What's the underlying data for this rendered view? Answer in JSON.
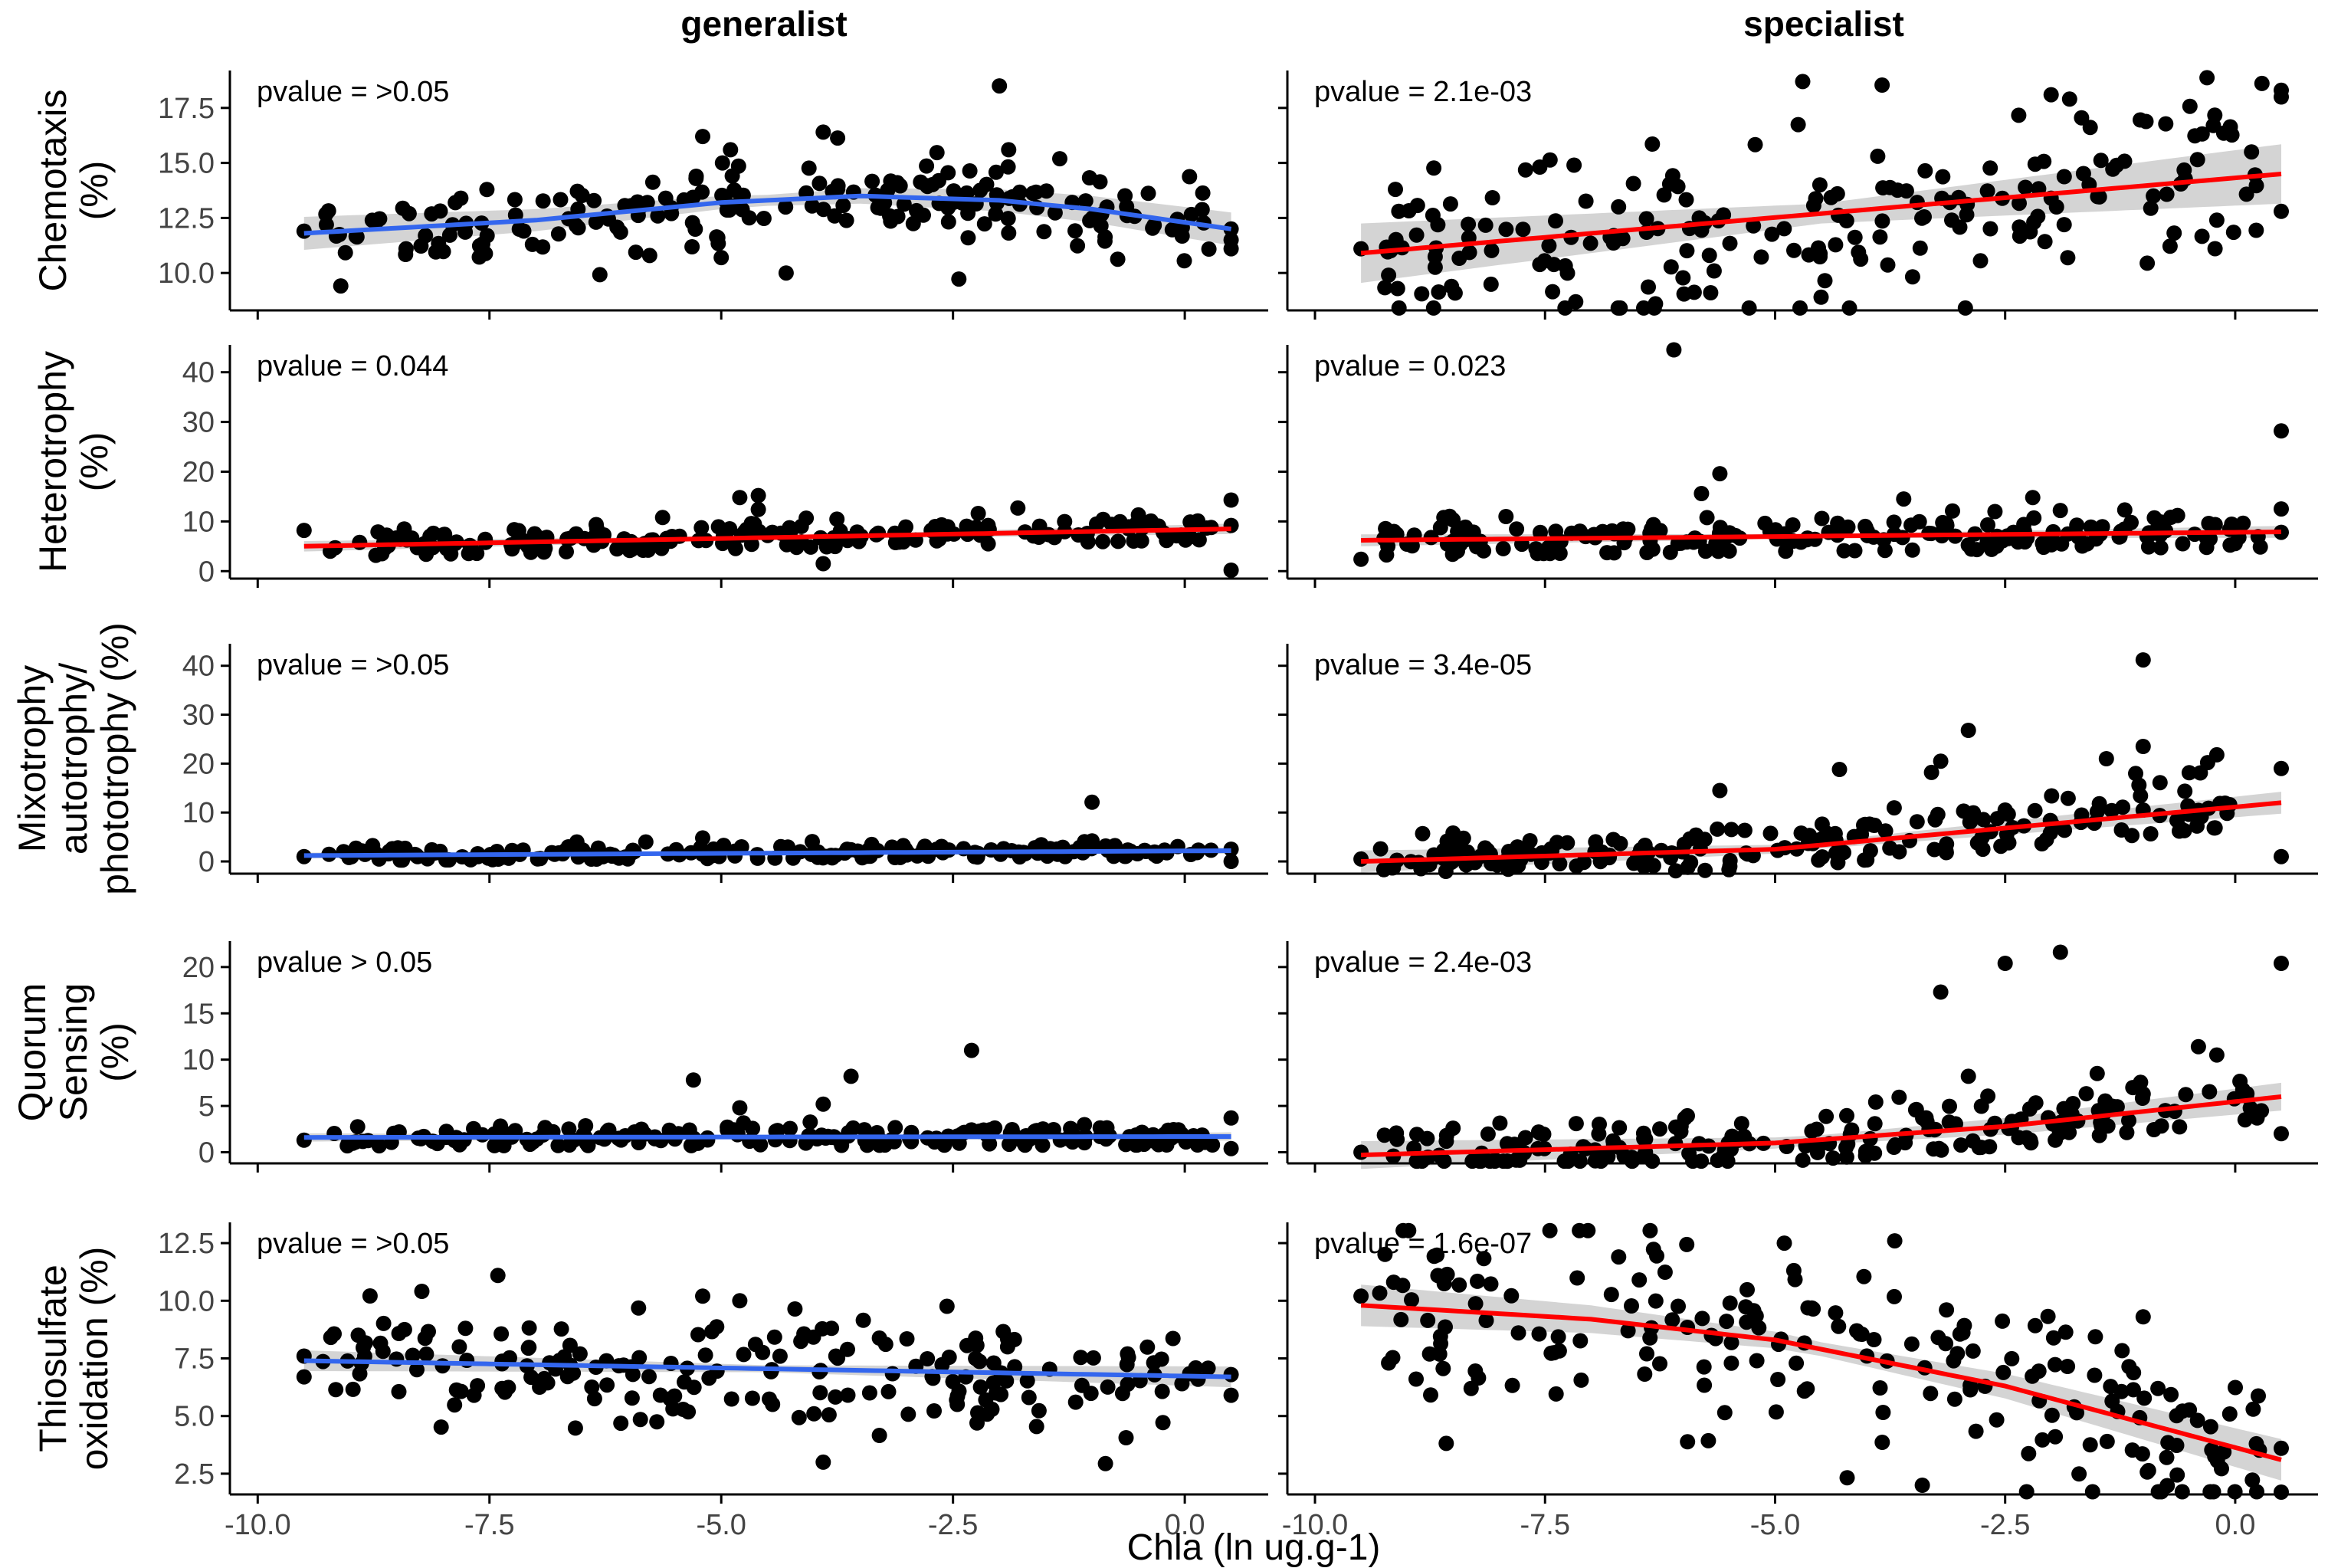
{
  "colors": {
    "generalist_line": "#3366ee",
    "sig_line": "#ff0000",
    "band": "#cccccc",
    "points": "#000000",
    "axis": "#000000",
    "tick_label": "#444444"
  },
  "chart_data": {
    "type": "scatter",
    "facet_columns": [
      "generalist",
      "specialist"
    ],
    "xlabel": "Chla (ln ug.g-1)",
    "xlim": [
      -10.3,
      0.9
    ],
    "xticks": [
      -10,
      -7.5,
      -5,
      -2.5,
      0
    ],
    "xtick_labels": [
      "-10.0",
      "-7.5",
      "-5.0",
      "-2.5",
      "0.0"
    ],
    "grid": false,
    "rows": [
      {
        "ylabel": [
          "Chemotaxis",
          "(%)"
        ],
        "ylim": [
          8.3,
          19.2
        ],
        "yticks": [
          10,
          12.5,
          15,
          17.5
        ],
        "ytick_labels": [
          "10.0",
          "12.5",
          "15.0",
          "17.5"
        ],
        "panels": [
          {
            "group": "generalist",
            "pvalue": "pvalue = >0.05",
            "line_color": "#3366ee",
            "fit": [
              [
                -9.5,
                11.8
              ],
              [
                -7,
                12.4
              ],
              [
                -5,
                13.2
              ],
              [
                -3.5,
                13.5
              ],
              [
                -2,
                13.3
              ],
              [
                -1,
                12.9
              ],
              [
                0.5,
                12.0
              ]
            ],
            "band": 0.5,
            "n": 200,
            "mean": 12.8,
            "sd": 0.9,
            "points": [
              [
                -2,
                18.5
              ],
              [
                -3.9,
                16.4
              ],
              [
                -5.2,
                16.2
              ],
              [
                -4.9,
                15.6
              ],
              [
                -5,
                10.7
              ],
              [
                -4.3,
                10
              ],
              [
                -1.9,
                15.6
              ],
              [
                -9.5,
                11.9
              ],
              [
                -8.4,
                11.1
              ],
              [
                0.5,
                11.1
              ],
              [
                0.5,
                11.5
              ],
              [
                0.5,
                12.0
              ]
            ]
          },
          {
            "group": "specialist",
            "pvalue": "pvalue = 2.1e-03",
            "line_color": "#ff0000",
            "fit": [
              [
                -9.5,
                10.9
              ],
              [
                0.5,
                14.5
              ]
            ],
            "band": 0.9,
            "n": 200,
            "mean": 12.7,
            "sd": 2.0,
            "points": [
              [
                -4.7,
                18.7
              ],
              [
                -2,
                18.1
              ],
              [
                -1.8,
                17.9
              ],
              [
                0.5,
                18.3
              ],
              [
                0.5,
                18.0
              ],
              [
                -6.3,
                8.6
              ],
              [
                -4.5,
                8.9
              ],
              [
                -5.7,
                9.1
              ],
              [
                -9.5,
                11.1
              ],
              [
                -9.2,
                9.9
              ],
              [
                0.5,
                12.8
              ],
              [
                -0.2,
                12.4
              ]
            ]
          }
        ]
      },
      {
        "ylabel": [
          "Heterotrophy",
          "(%)"
        ],
        "ylim": [
          -1.5,
          45.5
        ],
        "yticks": [
          0,
          10,
          20,
          30,
          40
        ],
        "ytick_labels": [
          "0",
          "10",
          "20",
          "30",
          "40"
        ],
        "panels": [
          {
            "group": "generalist",
            "pvalue": "pvalue = 0.044",
            "line_color": "#ff0000",
            "fit": [
              [
                -9.5,
                5.0
              ],
              [
                0.5,
                8.5
              ]
            ],
            "band": 0.7,
            "n": 200,
            "mean": 5.6,
            "sd": 1.6,
            "points": [
              [
                -4.6,
                15.2
              ],
              [
                -4.8,
                14.8
              ],
              [
                -4.6,
                12.4
              ],
              [
                -1.8,
                12.7
              ],
              [
                -0.5,
                11.3
              ],
              [
                0.5,
                14.3
              ],
              [
                0.5,
                0.2
              ],
              [
                -9.5,
                8.2
              ],
              [
                -3.9,
                1.5
              ],
              [
                0.5,
                9.2
              ]
            ]
          },
          {
            "group": "specialist",
            "pvalue": "pvalue = 0.023",
            "line_color": "#ff0000",
            "fit": [
              [
                -9.5,
                6.2
              ],
              [
                0.5,
                7.9
              ]
            ],
            "band": 0.8,
            "n": 200,
            "mean": 6.8,
            "sd": 2.3,
            "points": [
              [
                -6.1,
                44.5
              ],
              [
                0.5,
                28.2
              ],
              [
                -5.6,
                19.6
              ],
              [
                -5.8,
                15.6
              ],
              [
                0.5,
                12.5
              ],
              [
                -1.2,
                12.3
              ],
              [
                -2.2,
                14.8
              ],
              [
                -9.5,
                2.4
              ],
              [
                -8.5,
                10.3
              ],
              [
                0.5,
                7.8
              ]
            ]
          }
        ]
      },
      {
        "ylabel": [
          "Mixotrophy",
          "autotrophy/",
          "phototrophy (%)"
        ],
        "ylim": [
          -2.5,
          44.5
        ],
        "yticks": [
          0,
          10,
          20,
          30,
          40
        ],
        "ytick_labels": [
          "0",
          "10",
          "20",
          "30",
          "40"
        ],
        "panels": [
          {
            "group": "generalist",
            "pvalue": "pvalue = >0.05",
            "line_color": "#3366ee",
            "fit": [
              [
                -9.5,
                1.2
              ],
              [
                0.5,
                2.2
              ]
            ],
            "band": 0.4,
            "n": 200,
            "mean": 1.6,
            "sd": 0.8,
            "points": [
              [
                -1,
                12.1
              ],
              [
                -1,
                4.2
              ],
              [
                -5.2,
                4.8
              ],
              [
                0.5,
                0.0
              ],
              [
                0.5,
                2.5
              ],
              [
                -9.5,
                1.0
              ]
            ]
          },
          {
            "group": "specialist",
            "pvalue": "pvalue = 3.4e-05",
            "line_color": "#ff0000",
            "fit": [
              [
                -9.5,
                0.0
              ],
              [
                -5,
                2.5
              ],
              [
                0.5,
                12.0
              ]
            ],
            "band": 1.5,
            "n": 200,
            "mean": 3.5,
            "sd": 3.0,
            "points": [
              [
                -1,
                41.2
              ],
              [
                -2.9,
                26.8
              ],
              [
                -3.2,
                20.5
              ],
              [
                -1.4,
                21.0
              ],
              [
                -0.2,
                21.8
              ],
              [
                -1,
                23.5
              ],
              [
                0.5,
                19.0
              ],
              [
                -0.3,
                20.2
              ],
              [
                -3.3,
                18.2
              ],
              [
                -4.3,
                18.8
              ],
              [
                -5.6,
                14.5
              ],
              [
                -2.5,
                10.5
              ],
              [
                -1,
                10.5
              ],
              [
                0.5,
                1.0
              ],
              [
                -9.5,
                0.5
              ],
              [
                -8.5,
                5.8
              ]
            ]
          }
        ]
      },
      {
        "ylabel": [
          "Quorum",
          "Sensing",
          "(%)"
        ],
        "ylim": [
          -1.2,
          22.8
        ],
        "yticks": [
          0,
          5,
          10,
          15,
          20
        ],
        "ytick_labels": [
          "0",
          "5",
          "10",
          "15",
          "20"
        ],
        "panels": [
          {
            "group": "generalist",
            "pvalue": "pvalue > 0.05",
            "line_color": "#3366ee",
            "fit": [
              [
                -9.5,
                1.6
              ],
              [
                0.5,
                1.7
              ]
            ],
            "band": 0.3,
            "n": 200,
            "mean": 1.5,
            "sd": 0.7,
            "points": [
              [
                -2.3,
                11.0
              ],
              [
                -3.6,
                8.2
              ],
              [
                -5.3,
                7.8
              ],
              [
                -3.9,
                5.2
              ],
              [
                -4.8,
                4.8
              ],
              [
                0.5,
                3.7
              ],
              [
                0.5,
                0.4
              ],
              [
                -9.5,
                1.3
              ]
            ]
          },
          {
            "group": "specialist",
            "pvalue": "pvalue = 2.4e-03",
            "line_color": "#ff0000",
            "fit": [
              [
                -9.5,
                -0.3
              ],
              [
                -5,
                1.0
              ],
              [
                -2.5,
                2.8
              ],
              [
                0.5,
                6.0
              ]
            ],
            "band": 1.0,
            "n": 200,
            "mean": 1.8,
            "sd": 1.6,
            "points": [
              [
                -1.9,
                21.6
              ],
              [
                -2.5,
                20.4
              ],
              [
                0.5,
                20.4
              ],
              [
                -3.2,
                17.3
              ],
              [
                -0.4,
                11.4
              ],
              [
                -0.2,
                10.5
              ],
              [
                -1.5,
                8.5
              ],
              [
                -1,
                6.3
              ],
              [
                -2.9,
                8.2
              ],
              [
                0.5,
                2.0
              ],
              [
                -9.5,
                0.0
              ],
              [
                -8.5,
                2.6
              ]
            ]
          }
        ]
      },
      {
        "ylabel": [
          "Thiosulfate",
          "oxidation (%)"
        ],
        "ylim": [
          1.6,
          13.4
        ],
        "yticks": [
          2.5,
          5,
          7.5,
          10,
          12.5
        ],
        "ytick_labels": [
          "2.5",
          "5.0",
          "7.5",
          "10.0",
          "12.5"
        ],
        "panels": [
          {
            "group": "generalist",
            "pvalue": "pvalue = >0.05",
            "line_color": "#3366ee",
            "fit": [
              [
                -9.5,
                7.4
              ],
              [
                0.5,
                6.7
              ]
            ],
            "band": 0.3,
            "n": 200,
            "mean": 7.1,
            "sd": 1.2,
            "points": [
              [
                -3.9,
                3.0
              ],
              [
                -5.2,
                10.2
              ],
              [
                -4.8,
                10.0
              ],
              [
                0.5,
                5.9
              ],
              [
                0.5,
                6.8
              ],
              [
                -9.5,
                6.7
              ],
              [
                -9.5,
                7.6
              ]
            ]
          },
          {
            "group": "specialist",
            "pvalue": "pvalue = 1.6e-07",
            "line_color": "#ff0000",
            "fit": [
              [
                -9.5,
                9.8
              ],
              [
                -7,
                9.2
              ],
              [
                -5,
                8.3
              ],
              [
                -2.5,
                6.3
              ],
              [
                0.5,
                3.1
              ]
            ],
            "band": 0.6,
            "n": 200,
            "mean": 7.0,
            "sd": 2.0,
            "points": [
              [
                -9.5,
                10.2
              ],
              [
                -3.7,
                12.6
              ],
              [
                -4.9,
                12.5
              ],
              [
                -6.7,
                11.9
              ],
              [
                0.5,
                1.7
              ],
              [
                0.5,
                3.6
              ],
              [
                -3.4,
                2.0
              ],
              [
                -9.2,
                7.3
              ],
              [
                -1,
                9.3
              ]
            ]
          }
        ]
      }
    ]
  }
}
